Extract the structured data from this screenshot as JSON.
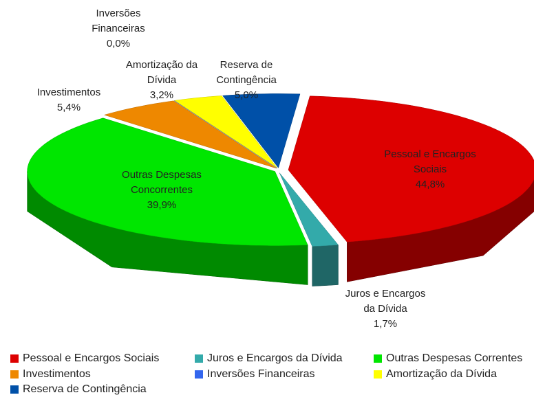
{
  "chart_data": {
    "type": "pie",
    "categories": [
      "Pessoal e Encargos Sociais",
      "Juros e Encargos da Dívida",
      "Outras Despesas Correntes",
      "Investimentos",
      "Inversões Financeiras",
      "Amortização da Dívida",
      "Reserva de Contingência"
    ],
    "values": [
      44.8,
      1.7,
      39.9,
      5.4,
      0.0,
      3.2,
      5.0
    ],
    "value_labels": [
      "44,8%",
      "1,7%",
      "39,9%",
      "5,4%",
      "0,0%",
      "3,2%",
      "5,0%"
    ],
    "slice_labels": [
      [
        "Pessoal e Encargos",
        "Sociais"
      ],
      [
        "Juros e Encargos",
        "da Dívida"
      ],
      [
        "Outras Despesas",
        "Concorrentes"
      ],
      [
        "Investimentos"
      ],
      [
        "Inversões",
        "Financeiras"
      ],
      [
        "Amortização da",
        "Dívida"
      ],
      [
        "Reserva de",
        "Contingência"
      ]
    ],
    "colors": [
      "#dd0000",
      "#33aaaa",
      "#00e600",
      "#ee8800",
      "#3366ee",
      "#ffff00",
      "#0050a8"
    ],
    "legend": "bottom"
  }
}
